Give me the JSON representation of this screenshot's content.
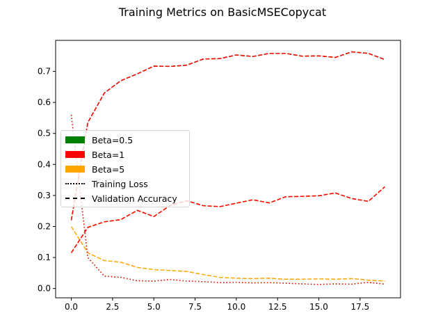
{
  "chart_data": {
    "type": "line",
    "title": "Training Metrics on BasicMSECopycat",
    "xlabel": "",
    "ylabel": "",
    "x": [
      0,
      1,
      2,
      3,
      4,
      5,
      6,
      7,
      8,
      9,
      10,
      11,
      12,
      13,
      14,
      15,
      16,
      17,
      18,
      19
    ],
    "xlim": [
      -0.95,
      19.95
    ],
    "ylim": [
      -0.03,
      0.8
    ],
    "xticks": [
      0.0,
      2.5,
      5.0,
      7.5,
      10.0,
      12.5,
      15.0,
      17.5
    ],
    "xtick_labels": [
      "0.0",
      "2.5",
      "5.0",
      "7.5",
      "10.0",
      "12.5",
      "15.0",
      "17.5"
    ],
    "yticks": [
      0.0,
      0.1,
      0.2,
      0.3,
      0.4,
      0.5,
      0.6,
      0.7
    ],
    "ytick_labels": [
      "0.0",
      "0.1",
      "0.2",
      "0.3",
      "0.4",
      "0.5",
      "0.6",
      "0.7"
    ],
    "grid": false,
    "legend_position": "center-left",
    "legend": [
      {
        "label": "Beta=0.5",
        "kind": "patch",
        "color": "#008000"
      },
      {
        "label": "Beta=1",
        "kind": "patch",
        "color": "#ff0000"
      },
      {
        "label": "Beta=5",
        "kind": "patch",
        "color": "#ffa500"
      },
      {
        "label": "Training Loss",
        "kind": "dotted-line",
        "color": "#000000"
      },
      {
        "label": "Validation Accuracy",
        "kind": "dashed-line",
        "color": "#000000"
      }
    ],
    "series": [
      {
        "beta": "Beta=0.5",
        "metric": "Training Loss",
        "color": "#008000",
        "style": "dotted",
        "values": [
          0.56,
          0.1,
          0.04,
          0.036,
          0.025,
          0.024,
          0.029,
          0.024,
          0.022,
          0.019,
          0.02,
          0.018,
          0.019,
          0.017,
          0.015,
          0.013,
          0.015,
          0.014,
          0.02,
          0.014
        ]
      },
      {
        "beta": "Beta=0.5",
        "metric": "Validation Accuracy",
        "color": "#008000",
        "style": "dashed",
        "values": [
          0.22,
          0.535,
          0.63,
          0.67,
          0.692,
          0.717,
          0.716,
          0.72,
          0.74,
          0.741,
          0.753,
          0.748,
          0.758,
          0.758,
          0.749,
          0.75,
          0.745,
          0.763,
          0.758,
          0.738
        ]
      },
      {
        "beta": "Beta=1",
        "metric": "Training Loss",
        "color": "#ff0000",
        "style": "dotted",
        "values": [
          0.56,
          0.1,
          0.04,
          0.036,
          0.025,
          0.024,
          0.029,
          0.024,
          0.022,
          0.019,
          0.02,
          0.018,
          0.019,
          0.017,
          0.015,
          0.013,
          0.015,
          0.014,
          0.02,
          0.014
        ]
      },
      {
        "beta": "Beta=1",
        "metric": "Validation Accuracy",
        "color": "#ff0000",
        "style": "dashed",
        "values": [
          0.22,
          0.535,
          0.63,
          0.67,
          0.692,
          0.717,
          0.716,
          0.72,
          0.74,
          0.741,
          0.753,
          0.748,
          0.758,
          0.758,
          0.749,
          0.75,
          0.745,
          0.763,
          0.758,
          0.738
        ]
      },
      {
        "beta": "Beta=5",
        "metric": "Training Loss",
        "color": "#ffa500",
        "style": "dashed",
        "values": [
          0.2,
          0.115,
          0.09,
          0.085,
          0.068,
          0.061,
          0.058,
          0.055,
          0.045,
          0.036,
          0.033,
          0.032,
          0.033,
          0.03,
          0.03,
          0.031,
          0.03,
          0.032,
          0.027,
          0.024
        ]
      },
      {
        "beta": "Beta=5",
        "metric": "Validation Accuracy",
        "color": "#ffa500",
        "style": "dashed",
        "values": [
          0.115,
          0.197,
          0.215,
          0.222,
          0.252,
          0.232,
          0.268,
          0.283,
          0.267,
          0.264,
          0.275,
          0.286,
          0.276,
          0.296,
          0.297,
          0.299,
          0.308,
          0.29,
          0.281,
          0.328
        ]
      },
      {
        "beta": "Beta=1",
        "metric": "Validation Accuracy (upper)",
        "color": "#ff0000",
        "style": "dashed",
        "values": [
          0.115,
          0.197,
          0.215,
          0.222,
          0.252,
          0.232,
          0.268,
          0.283,
          0.267,
          0.264,
          0.275,
          0.286,
          0.276,
          0.296,
          0.297,
          0.299,
          0.308,
          0.29,
          0.281,
          0.328
        ]
      }
    ]
  }
}
